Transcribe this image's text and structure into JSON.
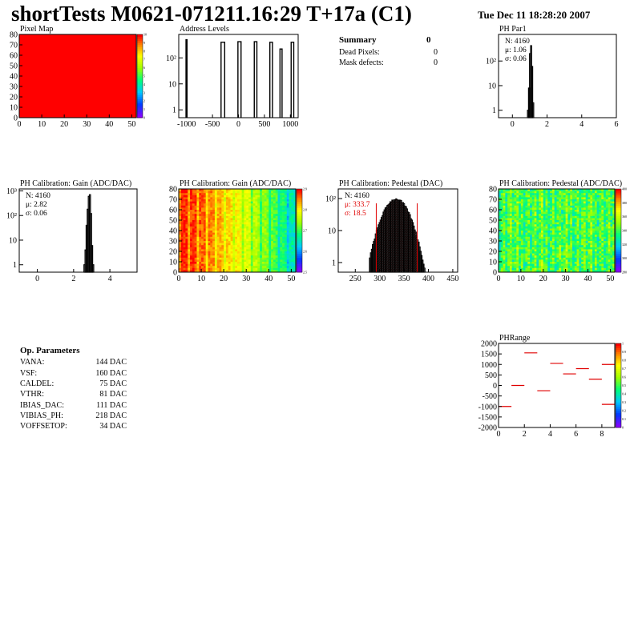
{
  "page": {
    "title": "shortTests M0621-071211.16:29 T+17a (C1)",
    "date": "Tue Dec 11 18:28:20 2007"
  },
  "summary": {
    "title": "Summary",
    "value": "0",
    "rows": [
      {
        "label": "Dead Pixels:",
        "value": "0"
      },
      {
        "label": "Mask defects:",
        "value": "0"
      }
    ]
  },
  "op_params": {
    "title": "Op. Parameters",
    "rows": [
      {
        "label": "VANA:",
        "value": "144 DAC"
      },
      {
        "label": "VSF:",
        "value": "160 DAC"
      },
      {
        "label": "CALDEL:",
        "value": "75 DAC"
      },
      {
        "label": "VTHR:",
        "value": "81 DAC"
      },
      {
        "label": "IBIAS_DAC:",
        "value": "111 DAC"
      },
      {
        "label": "VIBIAS_PH:",
        "value": "218 DAC"
      },
      {
        "label": "VOFFSETOP:",
        "value": "34 DAC"
      }
    ]
  },
  "colors": {
    "hist_line": "#000000",
    "fit": "#e00000",
    "pixel_map_fill": "#ff0000"
  },
  "chart_data": [
    {
      "id": "pixel_map",
      "type": "heatmap",
      "title": "Pixel Map",
      "xticks": [
        "0",
        "10",
        "20",
        "30",
        "40",
        "50"
      ],
      "yticks": [
        "0",
        "10",
        "20",
        "30",
        "40",
        "50",
        "60",
        "70",
        "80"
      ],
      "xlim": [
        0,
        52
      ],
      "ylim": [
        0,
        80
      ],
      "uniform_value": 10,
      "colorbar_ticks": [
        "0",
        "1",
        "2",
        "3",
        "4",
        "5",
        "6",
        "7",
        "8",
        "9",
        "10"
      ]
    },
    {
      "id": "address_levels",
      "type": "bar",
      "title": "Address Levels",
      "xticks": [
        "-1000",
        "-500",
        "0",
        "500",
        "1000"
      ],
      "yticks": [
        "1",
        "10",
        "10²"
      ],
      "xlim": [
        -1150,
        1150
      ],
      "log_y": true,
      "ylim": [
        0.5,
        800
      ],
      "peaks": [
        {
          "x": -1000,
          "width": 20,
          "y": 500
        },
        {
          "x": -300,
          "width": 70,
          "y": 400
        },
        {
          "x": 20,
          "width": 60,
          "y": 420
        },
        {
          "x": 330,
          "width": 50,
          "y": 420
        },
        {
          "x": 630,
          "width": 50,
          "y": 400
        },
        {
          "x": 820,
          "width": 40,
          "y": 220
        },
        {
          "x": 1040,
          "width": 50,
          "y": 400
        }
      ]
    },
    {
      "id": "ph_par1",
      "type": "bar",
      "title": "PH Par1",
      "xticks": [
        "0",
        "2",
        "4",
        "6"
      ],
      "yticks": [
        "1",
        "10",
        "10²"
      ],
      "xlim": [
        -0.8,
        6
      ],
      "log_y": true,
      "ylim": [
        0.5,
        1200
      ],
      "stats": {
        "N": "N: 4160",
        "mean": "μ: 1.06",
        "sigma": "σ: 0.06"
      },
      "bins": [
        {
          "x": 0.9,
          "y": 1
        },
        {
          "x": 0.96,
          "y": 8
        },
        {
          "x": 1.02,
          "y": 200
        },
        {
          "x": 1.08,
          "y": 420
        },
        {
          "x": 1.14,
          "y": 60
        },
        {
          "x": 1.2,
          "y": 2
        }
      ]
    },
    {
      "id": "gain_1d",
      "type": "bar",
      "title": "PH Calibration: Gain (ADC/DAC)",
      "xticks": [
        "0",
        "2",
        "4"
      ],
      "yticks": [
        "1",
        "10",
        "10²",
        "10³"
      ],
      "xlim": [
        -1,
        5.5
      ],
      "log_y": true,
      "ylim": [
        0.5,
        1200
      ],
      "stats": {
        "N": "N: 4160",
        "mean": "μ: 2.82",
        "sigma": "σ: 0.06"
      },
      "bins": [
        {
          "x": 2.6,
          "y": 1
        },
        {
          "x": 2.66,
          "y": 4
        },
        {
          "x": 2.72,
          "y": 40
        },
        {
          "x": 2.78,
          "y": 180
        },
        {
          "x": 2.84,
          "y": 600
        },
        {
          "x": 2.9,
          "y": 700
        },
        {
          "x": 2.96,
          "y": 120
        },
        {
          "x": 3.02,
          "y": 6
        },
        {
          "x": 3.08,
          "y": 1
        }
      ]
    },
    {
      "id": "gain_map",
      "type": "heatmap",
      "title": "PH Calibration: Gain (ADC/DAC)",
      "xticks": [
        "0",
        "10",
        "20",
        "30",
        "40",
        "50"
      ],
      "yticks": [
        "0",
        "10",
        "20",
        "30",
        "40",
        "50",
        "60",
        "70",
        "80"
      ],
      "xlim": [
        0,
        52
      ],
      "ylim": [
        0,
        80
      ],
      "colorbar_ticks": [
        "2.5",
        "2.6",
        "2.7",
        "2.8",
        "2.9"
      ]
    },
    {
      "id": "pedestal_1d",
      "type": "bar",
      "title": "PH Calibration: Pedestal (DAC)",
      "xticks": [
        "250",
        "300",
        "350",
        "400",
        "450"
      ],
      "yticks": [
        "1",
        "10",
        "10²"
      ],
      "xlim": [
        215,
        460
      ],
      "log_y": true,
      "ylim": [
        0.5,
        200
      ],
      "stats": {
        "N": "N: 4160",
        "mean": "μ: 333.7",
        "sigma": "σ: 18.5"
      },
      "mean": 333.7,
      "sigma": 18.5,
      "peak": 95,
      "cut_lines": [
        293,
        377
      ]
    },
    {
      "id": "pedestal_map",
      "type": "heatmap",
      "title": "PH Calibration: Pedestal (ADC/DAC)",
      "xticks": [
        "0",
        "10",
        "20",
        "30",
        "40",
        "50"
      ],
      "yticks": [
        "0",
        "10",
        "20",
        "30",
        "40",
        "50",
        "60",
        "70",
        "80"
      ],
      "xlim": [
        0,
        52
      ],
      "ylim": [
        0,
        80
      ],
      "colorbar_ticks": [
        "280",
        "300",
        "320",
        "340",
        "360",
        "380",
        "400"
      ]
    },
    {
      "id": "ph_range",
      "type": "scatter",
      "title": "PHRange",
      "xticks": [
        "0",
        "2",
        "4",
        "6",
        "8"
      ],
      "yticks": [
        "-2000",
        "-1500",
        "-1000",
        "-500",
        "0",
        "500",
        "1000",
        "1500",
        "2000"
      ],
      "xlim": [
        0,
        9
      ],
      "ylim": [
        -2000,
        2000
      ],
      "colorbar_ticks": [
        "0",
        "0.1",
        "0.2",
        "0.3",
        "0.4",
        "0.5",
        "0.6",
        "0.7",
        "0.8",
        "0.9",
        "1"
      ],
      "segments": [
        {
          "x": 0.5,
          "y": -1000
        },
        {
          "x": 1.5,
          "y": 0
        },
        {
          "x": 2.5,
          "y": 1550
        },
        {
          "x": 3.5,
          "y": -250
        },
        {
          "x": 4.5,
          "y": 1050
        },
        {
          "x": 5.5,
          "y": 550
        },
        {
          "x": 6.5,
          "y": 800
        },
        {
          "x": 7.5,
          "y": 300
        },
        {
          "x": 8.5,
          "y": 1000
        },
        {
          "x": 8.5,
          "y": -900
        }
      ]
    }
  ]
}
